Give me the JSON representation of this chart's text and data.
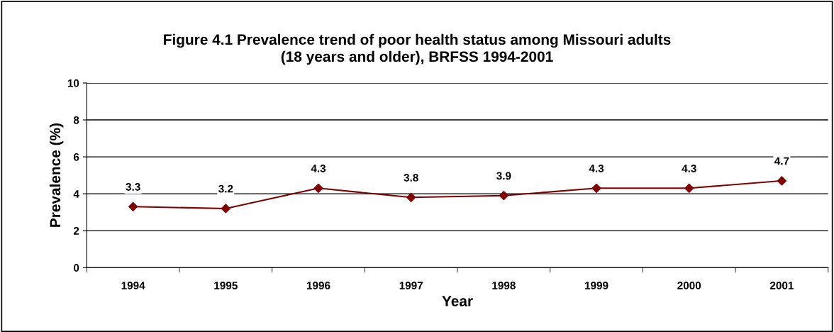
{
  "chart_data": {
    "type": "line",
    "title": "Figure 4.1 Prevalence trend of poor health status among Missouri adults\n(18 years and older), BRFSS 1994-2001",
    "xlabel": "Year",
    "ylabel": "Prevalence (%)",
    "categories": [
      "1994",
      "1995",
      "1996",
      "1997",
      "1998",
      "1999",
      "2000",
      "2001"
    ],
    "series": [
      {
        "color": "#800000",
        "values": [
          3.3,
          3.2,
          4.3,
          3.8,
          3.9,
          4.3,
          4.3,
          4.7
        ]
      }
    ],
    "ylim": [
      0,
      10
    ],
    "yticks": [
      0,
      2,
      4,
      6,
      8,
      10
    ],
    "grid": "y",
    "marker": "diamond",
    "line_style": "solid",
    "data_labels": true,
    "legend": false
  }
}
